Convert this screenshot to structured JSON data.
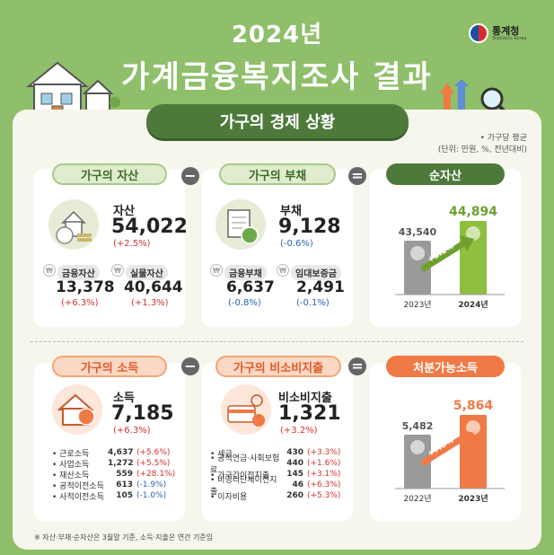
{
  "header": {
    "year_title": "2024년",
    "main_title": "가계금융복지조사 결과",
    "logo_name": "통계청",
    "logo_sub": "Statistics Korea"
  },
  "section_title": "가구의 경제 상황",
  "unit_note": {
    "line1": "• 가구당 평균",
    "line2": "(단위: 만원, %, 전년대비)"
  },
  "operators": {
    "minus": "−",
    "equals": "="
  },
  "assets": {
    "pill": "가구의 자산",
    "label": "자산",
    "value": "54,022",
    "change": "(+2.5%)",
    "sub": [
      {
        "label": "금융자산",
        "value": "13,378",
        "change": "(+6.3%)"
      },
      {
        "label": "실물자산",
        "value": "40,644",
        "change": "(+1.3%)"
      }
    ]
  },
  "debt": {
    "pill": "가구의 부채",
    "label": "부채",
    "value": "9,128",
    "change": "(-0.6%)",
    "sub": [
      {
        "label": "금융부채",
        "value": "6,637",
        "change": "(-0.8%)"
      },
      {
        "label": "임대보증금",
        "value": "2,491",
        "change": "(-0.1%)"
      }
    ]
  },
  "net_assets": {
    "pill": "순자산",
    "growth": "+3.1%",
    "chart_data": {
      "type": "bar",
      "categories": [
        "2023년",
        "2024년"
      ],
      "values": [
        43540,
        44894
      ],
      "labels": [
        "43,540",
        "44,894"
      ],
      "colors": [
        "#9a9a9a",
        "#8fbf3f"
      ]
    }
  },
  "income": {
    "pill": "가구의 소득",
    "label": "소득",
    "value": "7,185",
    "change": "(+6.3%)",
    "items": [
      {
        "label": "근로소득",
        "value": "4,637",
        "change": "(+5.6%)",
        "color": "red"
      },
      {
        "label": "사업소득",
        "value": "1,272",
        "change": "(+5.5%)",
        "color": "red"
      },
      {
        "label": "재산소득",
        "value": "559",
        "change": "(+28.1%)",
        "color": "red"
      },
      {
        "label": "공적이전소득",
        "value": "613",
        "change": "(-1.9%)",
        "color": "blue"
      },
      {
        "label": "사적이전소득",
        "value": "105",
        "change": "(-1.0%)",
        "color": "blue"
      }
    ]
  },
  "non_consumption": {
    "pill": "가구의 비소비지출",
    "label": "비소비지출",
    "value": "1,321",
    "change": "(+3.2%)",
    "items": [
      {
        "label": "세금",
        "value": "430",
        "change": "(+3.3%)",
        "color": "red"
      },
      {
        "label": "공적연금·사회보험료",
        "value": "440",
        "change": "(+1.6%)",
        "color": "red"
      },
      {
        "label": "가구간이전지출",
        "value": "145",
        "change": "(+3.1%)",
        "color": "red"
      },
      {
        "label": "비영리단체이전지출",
        "value": "46",
        "change": "(+6.3%)",
        "color": "red"
      },
      {
        "label": "이자비용",
        "value": "260",
        "change": "(+5.3%)",
        "color": "red"
      }
    ]
  },
  "disposable": {
    "pill": "처분가능소득",
    "growth": "+7.0%",
    "chart_data": {
      "type": "bar",
      "categories": [
        "2022년",
        "2023년"
      ],
      "values": [
        5482,
        5864
      ],
      "labels": [
        "5,482",
        "5,864"
      ],
      "colors": [
        "#9a9a9a",
        "#f07a45"
      ]
    }
  },
  "footnote": "※ 자산·부채·순자산은 3월말 기준, 소득·지출은 연간 기준임"
}
